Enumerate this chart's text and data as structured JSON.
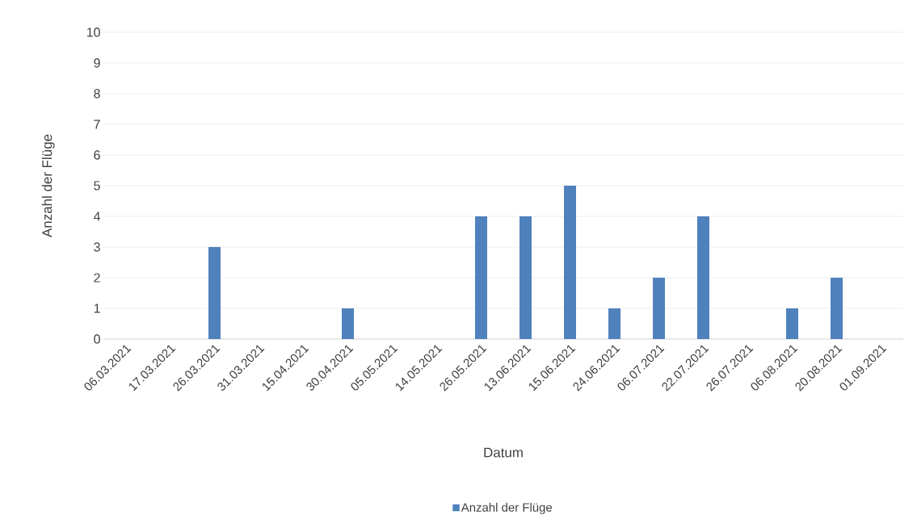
{
  "chart_data": {
    "type": "bar",
    "xlabel": "Datum",
    "ylabel": "Anzahl der Flüge",
    "categories": [
      "06.03.2021",
      "17.03.2021",
      "26.03.2021",
      "31.03.2021",
      "15.04.2021",
      "30.04.2021",
      "05.05.2021",
      "14.05.2021",
      "26.05.2021",
      "13.06.2021",
      "15.06.2021",
      "24.06.2021",
      "06.07.2021",
      "22.07.2021",
      "26.07.2021",
      "06.08.2021",
      "20.08.2021",
      "01.09.2021"
    ],
    "series": [
      {
        "name": "Anzahl der Flüge",
        "color": "#4f81bd",
        "values": [
          0,
          0,
          3,
          0,
          0,
          1,
          0,
          0,
          4,
          4,
          5,
          1,
          2,
          4,
          0,
          1,
          2,
          0
        ]
      }
    ],
    "ylim": [
      0,
      10
    ],
    "yticks": [
      0,
      1,
      2,
      3,
      4,
      5,
      6,
      7,
      8,
      9,
      10
    ],
    "grid": "y",
    "legend": "bottom"
  }
}
